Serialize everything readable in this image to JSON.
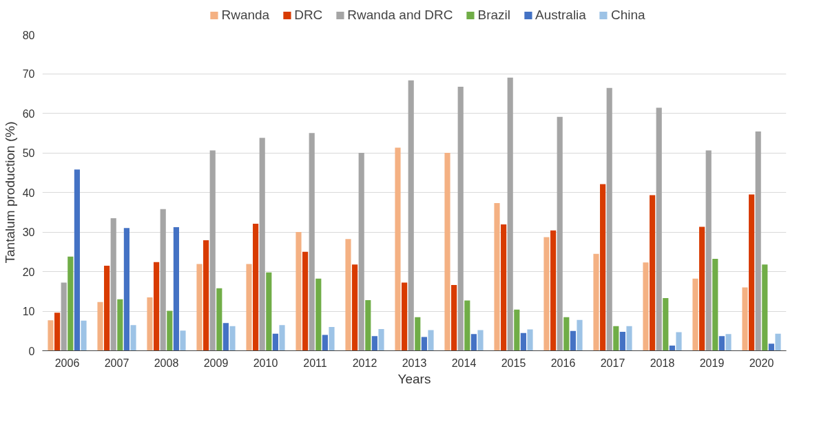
{
  "chart_data": {
    "type": "bar",
    "xlabel": "Years",
    "ylabel": "Tantalum production (%)",
    "categories": [
      "2006",
      "2007",
      "2008",
      "2009",
      "2010",
      "2011",
      "2012",
      "2013",
      "2014",
      "2015",
      "2016",
      "2017",
      "2018",
      "2019",
      "2020"
    ],
    "series": [
      {
        "name": "Rwanda",
        "color": "#f4b183",
        "values": [
          7.7,
          12.3,
          13.5,
          21.9,
          21.9,
          30,
          28.2,
          51.3,
          50,
          37.3,
          28.7,
          24.5,
          22.3,
          18.2,
          16
        ]
      },
      {
        "name": "DRC",
        "color": "#d83b01",
        "values": [
          9.6,
          21.5,
          22.4,
          27.9,
          32.1,
          25,
          21.8,
          17.2,
          16.6,
          31.9,
          30.4,
          42.1,
          39.3,
          31.3,
          39.5
        ]
      },
      {
        "name": "Rwanda and DRC",
        "color": "#a5a5a5",
        "values": [
          17.2,
          33.5,
          35.8,
          50.6,
          53.8,
          55,
          50,
          68.3,
          66.7,
          69,
          59.1,
          66.4,
          61.4,
          50.6,
          55.4
        ]
      },
      {
        "name": "Brazil",
        "color": "#70ad47",
        "values": [
          23.8,
          13,
          10.1,
          15.8,
          19.8,
          18.2,
          12.8,
          8.5,
          12.7,
          10.4,
          8.5,
          6.2,
          13.3,
          23.2,
          21.8
        ]
      },
      {
        "name": "Australia",
        "color": "#4472c4",
        "values": [
          45.8,
          31,
          31.2,
          7,
          4.3,
          4,
          3.7,
          3.5,
          4.2,
          4.5,
          5,
          4.8,
          1.3,
          3.7,
          1.8
        ]
      },
      {
        "name": "China",
        "color": "#9dc3e6",
        "values": [
          7.6,
          6.5,
          5.1,
          6.2,
          6.5,
          6,
          5.5,
          5.2,
          5.2,
          5.4,
          7.8,
          6.2,
          4.7,
          4.2,
          4.3
        ]
      }
    ],
    "ylim": [
      0,
      80
    ],
    "yticks": [
      0,
      10,
      20,
      30,
      40,
      50,
      60,
      70,
      80
    ],
    "grid": "y",
    "legend": "top"
  }
}
